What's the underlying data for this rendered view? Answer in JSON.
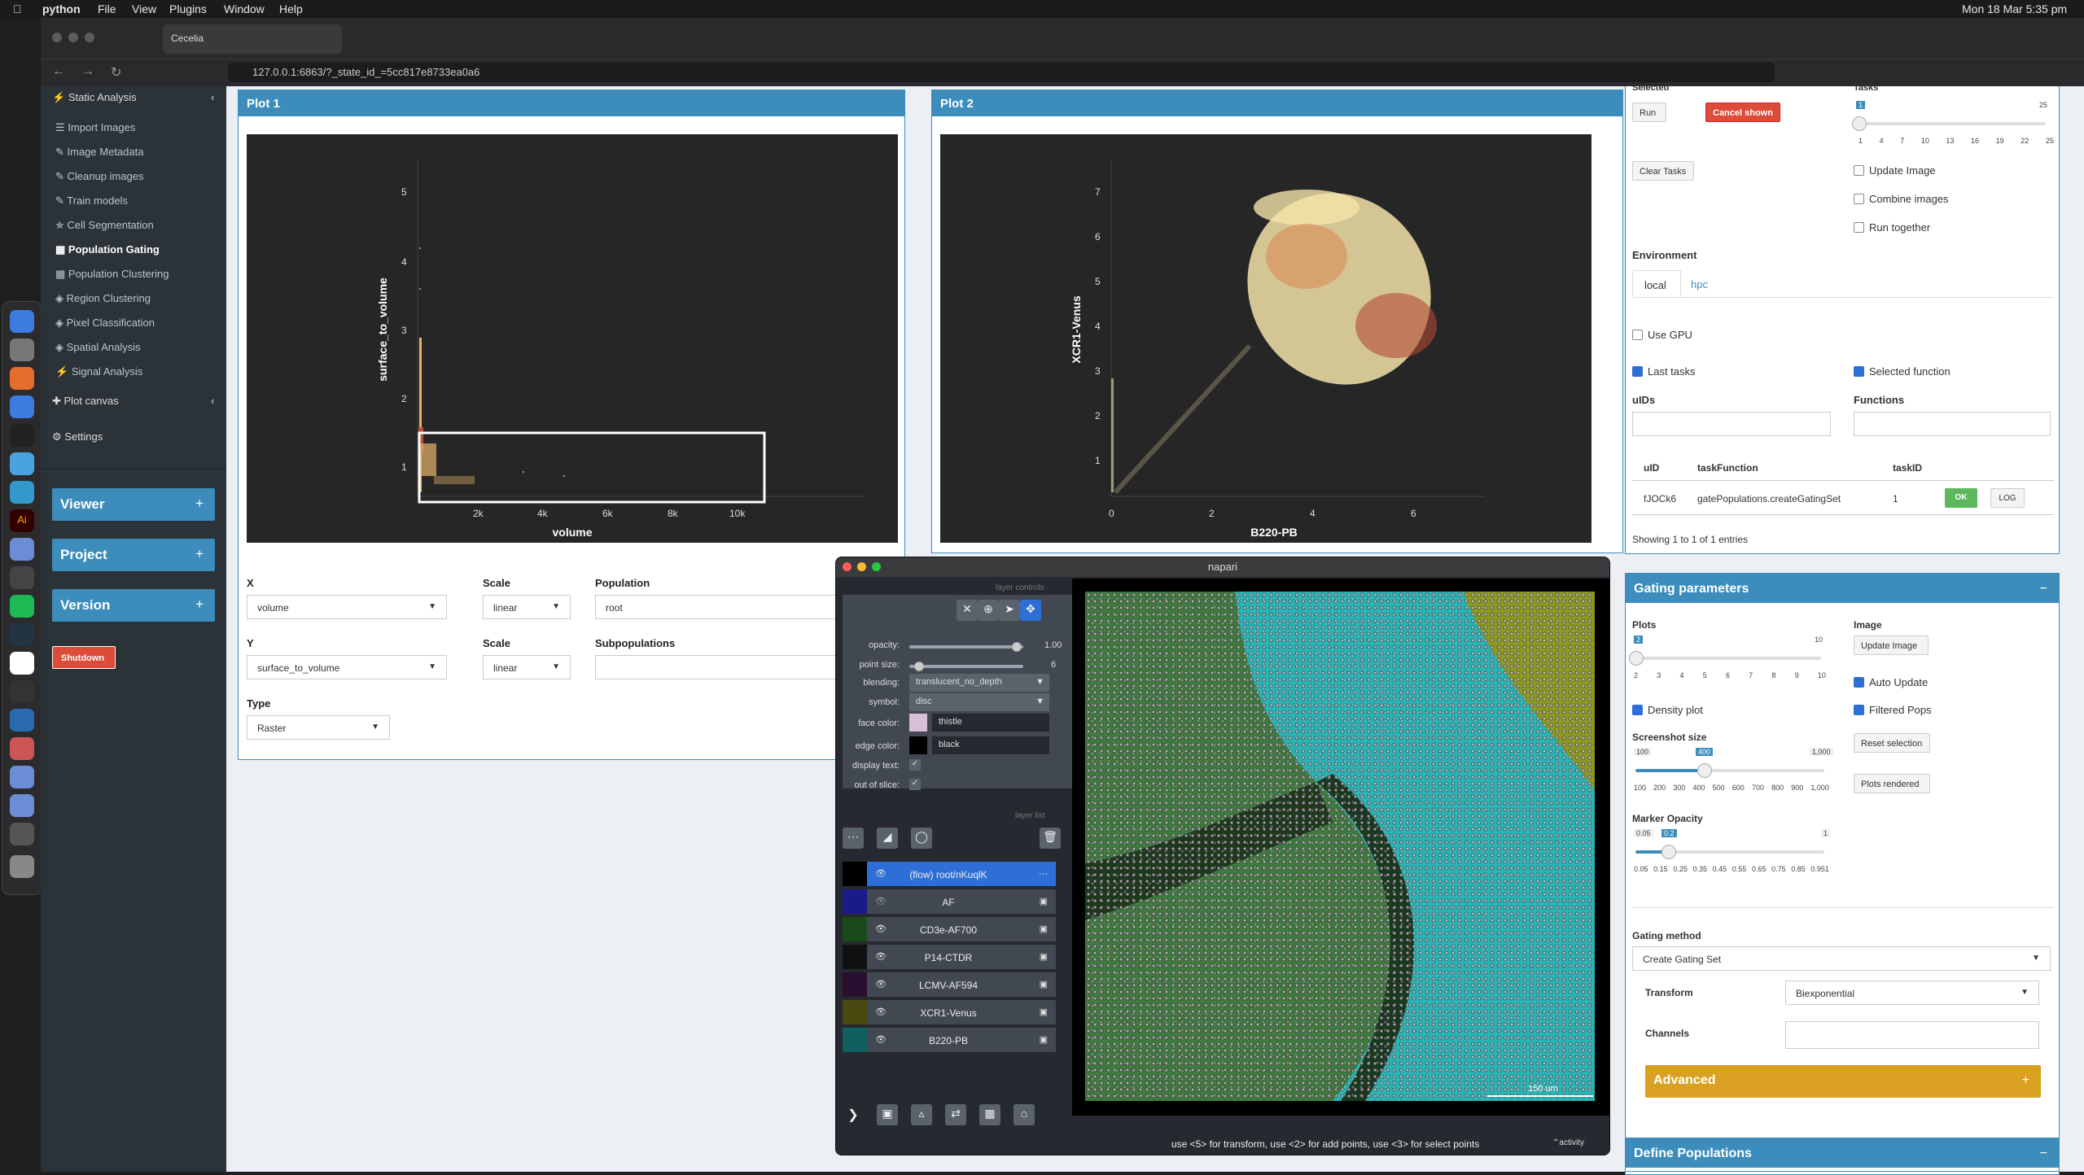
{
  "menubar": {
    "app": "python",
    "items": [
      "File",
      "View",
      "Plugins",
      "Window",
      "Help"
    ],
    "clock": "Mon 18 Mar  5:35 pm"
  },
  "browser": {
    "tab": "Cecelia",
    "url": "127.0.0.1:6863/?_state_id_=5cc817e8733ea0a6"
  },
  "sidebar": {
    "section": "Static Analysis",
    "items": [
      "Import Images",
      "Image Metadata",
      "Cleanup images",
      "Train models",
      "Cell Segmentation",
      "Population Gating",
      "Population Clustering",
      "Region Clustering",
      "Pixel Classification",
      "Spatial Analysis",
      "Signal Analysis"
    ],
    "plot_canvas": "Plot canvas",
    "settings": "Settings",
    "boxes": [
      "Viewer",
      "Project",
      "Version"
    ],
    "plus": "+",
    "shutdown": "Shutdown"
  },
  "plot1": {
    "title": "Plot 1",
    "ylabel": "surface_to_volume",
    "xlabel": "volume",
    "yticks": [
      "1",
      "2",
      "3",
      "4",
      "5"
    ],
    "xticks": [
      "2k",
      "4k",
      "6k",
      "8k",
      "10k"
    ]
  },
  "plot2": {
    "title": "Plot 2",
    "ylabel": "XCR1-Venus",
    "xlabel": "B220-PB",
    "yticks": [
      "1",
      "2",
      "3",
      "4",
      "5",
      "6",
      "7"
    ],
    "xticks": [
      "0",
      "2",
      "4",
      "6"
    ]
  },
  "controls": {
    "x_label": "X",
    "x_value": "volume",
    "scale_label": "Scale",
    "x_scale": "linear",
    "pop_label": "Population",
    "pop_value": "root",
    "y_label": "Y",
    "y_value": "surface_to_volume",
    "y_scale": "linear",
    "subpop_label": "Subpopulations",
    "type_label": "Type",
    "type_value": "Raster"
  },
  "tasks": {
    "selected_label": "Selected",
    "tasks_label": "Tasks",
    "run": "Run",
    "cancel": "Cancel shown",
    "clear": "Clear Tasks",
    "slider_min": "1",
    "slider_max": "25",
    "slider_val": "1",
    "ticks": [
      "1",
      "4",
      "7",
      "10",
      "13",
      "16",
      "19",
      "22",
      "25"
    ],
    "update_image": "Update Image",
    "combine_images": "Combine images",
    "run_together": "Run together",
    "environment": "Environment",
    "env_tabs": [
      "local",
      "hpc"
    ],
    "use_gpu": "Use GPU",
    "last_tasks": "Last tasks",
    "selected_function": "Selected function",
    "uids": "uIDs",
    "functions": "Functions",
    "table_headers": [
      "uID",
      "taskFunction",
      "taskID"
    ],
    "row": {
      "uid": "fJOCk6",
      "fn": "gatePopulations.createGatingSet",
      "id": "1",
      "ok": "OK",
      "log": "LOG"
    },
    "showing": "Showing 1 to 1 of 1 entries"
  },
  "gating": {
    "title": "Gating parameters",
    "collapse": "−",
    "plots": "Plots",
    "image": "Image",
    "plots_min": "2",
    "plots_max": "10",
    "plots_ticks": [
      "2",
      "3",
      "4",
      "5",
      "6",
      "7",
      "8",
      "9",
      "10"
    ],
    "update_image": "Update Image",
    "density_plot": "Density plot",
    "auto_update": "Auto Update",
    "filtered_pops": "Filtered Pops",
    "screenshot_size": "Screenshot size",
    "ss_min": "100",
    "ss_val": "400",
    "ss_max": "1,000",
    "ss_ticks": [
      "100",
      "200",
      "300",
      "400",
      "500",
      "600",
      "700",
      "800",
      "900",
      "1,000"
    ],
    "reset_selection": "Reset selection",
    "plots_rendered": "Plots rendered",
    "marker_opacity": "Marker Opacity",
    "mo_min": "0.05",
    "mo_val": "0.2",
    "mo_max": "1",
    "mo_ticks": [
      "0.05",
      "0.15",
      "0.25",
      "0.35",
      "0.45",
      "0.55",
      "0.65",
      "0.75",
      "0.85",
      "0.951"
    ],
    "gating_method": "Gating method",
    "gating_method_value": "Create Gating Set",
    "transform": "Transform",
    "transform_value": "Biexponential",
    "channels": "Channels",
    "advanced": "Advanced"
  },
  "define": {
    "title": "Define Populations",
    "collapse": "−"
  },
  "napari": {
    "title": "napari",
    "layer_controls": "layer controls",
    "layer_list": "layer list",
    "opacity_label": "opacity:",
    "opacity": "1.00",
    "point_size_label": "point size:",
    "point_size": "6",
    "blending_label": "blending:",
    "blending": "translucent_no_depth",
    "symbol_label": "symbol:",
    "symbol": "disc",
    "face_label": "face color:",
    "face": "thistle",
    "edge_label": "edge color:",
    "edge": "black",
    "display_text": "display text:",
    "out_of_slice": "out of slice:",
    "layers": [
      {
        "name": "(flow) root/nKuqlK",
        "color": "#2d6fd6"
      },
      {
        "name": "AF",
        "color": "#1a1a8a"
      },
      {
        "name": "CD3e-AF700",
        "color": "#1a4a1a"
      },
      {
        "name": "P14-CTDR",
        "color": "#111111"
      },
      {
        "name": "LCMV-AF594",
        "color": "#2a1030"
      },
      {
        "name": "XCR1-Venus",
        "color": "#4a4a10"
      },
      {
        "name": "B220-PB",
        "color": "#106060"
      }
    ],
    "status": "use <5> for transform, use <2> for add points, use <3> for select points",
    "activity": "activity",
    "scale_bar": "150 um"
  }
}
